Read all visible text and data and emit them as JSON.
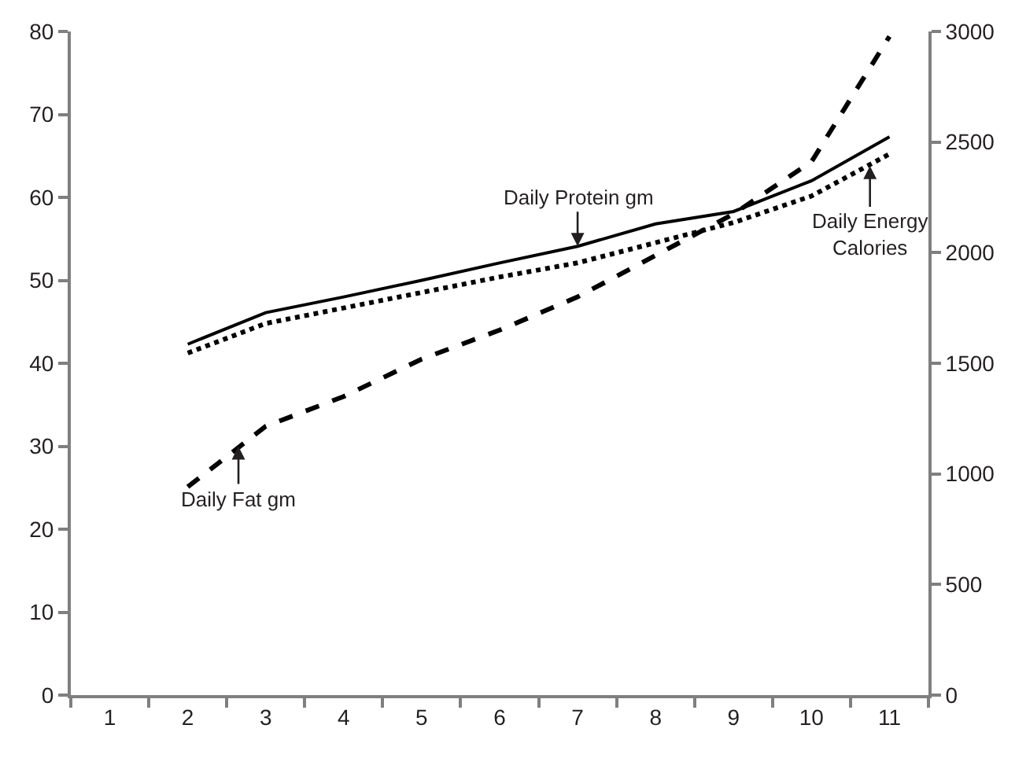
{
  "chart_data": {
    "type": "line",
    "x": [
      2,
      3,
      4,
      5,
      6,
      7,
      8,
      9,
      10,
      11
    ],
    "series": [
      {
        "color": "#000000",
        "line_style": "solid",
        "values": [
          42.3,
          46.1,
          48.0,
          50.0,
          52.1,
          54.1,
          56.8,
          58.3,
          62.0,
          67.3
        ]
      },
      {
        "color": "#000000",
        "line_style": "dashed",
        "values": [
          25.1,
          32.4,
          36.0,
          40.5,
          44.0,
          48.0,
          53.0,
          58.0,
          64.3,
          79.4
        ]
      },
      {
        "color": "#000000",
        "line_style": "dotted",
        "axis": "y2",
        "values": [
          1546,
          1680,
          1750,
          1820,
          1890,
          1954,
          2045,
          2136,
          2256,
          2446
        ]
      }
    ],
    "xlim": [
      0.5,
      11.5
    ],
    "xticks": [
      1,
      2,
      3,
      4,
      5,
      6,
      7,
      8,
      9,
      10,
      11
    ],
    "ylim": [
      0,
      80
    ],
    "yticks": [
      0,
      10,
      20,
      30,
      40,
      50,
      60,
      70,
      80
    ],
    "y2lim": [
      0,
      3000
    ],
    "y2ticks": [
      0,
      500,
      1000,
      1500,
      2000,
      2500,
      3000
    ],
    "annotations": [
      {
        "text": "Daily Protein gm",
        "x": 7,
        "y": 54.1
      },
      {
        "text": "Daily Fat gm",
        "x": 2.65,
        "y": 30
      },
      {
        "text": "Daily Energy\nCalories",
        "x": 10.75,
        "y": 63.8
      }
    ],
    "marker": "none"
  }
}
